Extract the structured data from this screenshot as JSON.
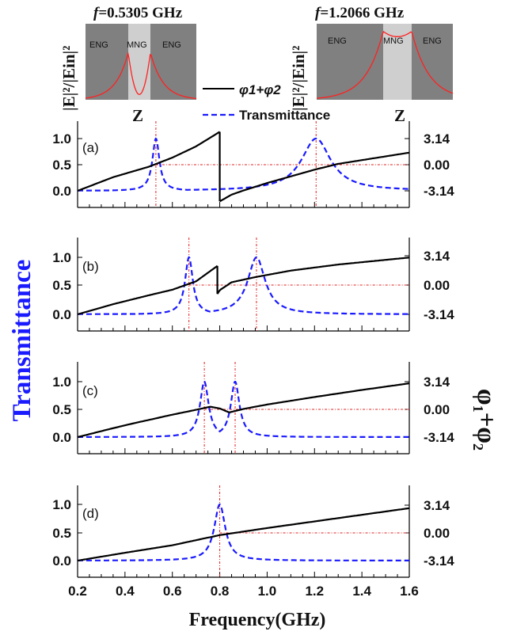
{
  "chart_data": {
    "type": "line",
    "xlabel": "Frequency(GHz)",
    "ylabel_left": "Transmittance",
    "ylabel_right": "φ1+φ2",
    "xlim": [
      0.2,
      1.6
    ],
    "x_ticks": [
      "0.2",
      "0.4",
      "0.6",
      "0.8",
      "1.0",
      "1.2",
      "1.4",
      "1.6"
    ],
    "y_left_ticks": [
      "0.0",
      "0.5",
      "1.0"
    ],
    "y_right_ticks": [
      "-3.14",
      "0.00",
      "3.14"
    ],
    "legend": [
      {
        "name": "φ1+φ2",
        "color": "#000000",
        "style": "solid"
      },
      {
        "name": "Transmittance",
        "color": "#1a1aff",
        "style": "dashed"
      }
    ],
    "panels": [
      {
        "label": "(a)",
        "transmittance_peaks": [
          {
            "f": 0.5305,
            "width": 0.018,
            "h": 1.0
          },
          {
            "f": 1.2066,
            "width": 0.075,
            "h": 1.0
          }
        ],
        "phase_segments": [
          {
            "x": [
              0.2,
              0.35,
              0.5,
              0.6,
              0.7,
              0.8
            ],
            "y": [
              -3.14,
              -1.5,
              -0.25,
              0.85,
              2.2,
              3.95
            ]
          },
          {
            "x": [
              0.8,
              0.85,
              0.9,
              1.0,
              1.1,
              1.2,
              1.3,
              1.4,
              1.5,
              1.6
            ],
            "y": [
              -4.4,
              -3.6,
              -3.1,
              -2.2,
              -1.4,
              -0.6,
              0.1,
              0.55,
              1.0,
              1.45
            ]
          }
        ],
        "markers": [
          0.5305,
          1.2066
        ]
      },
      {
        "label": "(b)",
        "transmittance_peaks": [
          {
            "f": 0.67,
            "width": 0.02,
            "h": 1.0
          },
          {
            "f": 0.955,
            "width": 0.045,
            "h": 1.0
          }
        ],
        "phase_segments": [
          {
            "x": [
              0.2,
              0.35,
              0.5,
              0.6,
              0.7,
              0.79
            ],
            "y": [
              -3.14,
              -2.05,
              -1.1,
              -0.5,
              0.4,
              2.05
            ]
          },
          {
            "x": [
              0.79,
              0.8,
              0.85,
              0.95,
              1.1,
              1.3,
              1.5,
              1.6
            ],
            "y": [
              -0.95,
              -0.55,
              0.3,
              0.85,
              1.55,
              2.2,
              2.7,
              2.95
            ]
          }
        ],
        "markers": [
          0.67,
          0.955
        ]
      },
      {
        "label": "(c)",
        "transmittance_peaks": [
          {
            "f": 0.735,
            "width": 0.022,
            "h": 1.0
          },
          {
            "f": 0.865,
            "width": 0.022,
            "h": 1.0
          }
        ],
        "phase_segments": [
          {
            "x": [
              0.2,
              0.4,
              0.6,
              0.7,
              0.76,
              0.8,
              0.84,
              0.9,
              1.0,
              1.2,
              1.4,
              1.6
            ],
            "y": [
              -3.14,
              -1.8,
              -0.6,
              -0.05,
              0.3,
              0.1,
              -0.35,
              0.05,
              0.55,
              1.4,
              2.2,
              2.95
            ]
          }
        ],
        "markers": [
          0.735,
          0.865
        ]
      },
      {
        "label": "(d)",
        "transmittance_peaks": [
          {
            "f": 0.8,
            "width": 0.028,
            "h": 1.0
          }
        ],
        "phase_segments": [
          {
            "x": [
              0.2,
              0.4,
              0.6,
              0.8,
              1.0,
              1.2,
              1.4,
              1.6
            ],
            "y": [
              -3.14,
              -2.25,
              -1.4,
              -0.25,
              0.55,
              1.3,
              2.05,
              2.8
            ]
          }
        ],
        "markers": [
          0.8
        ]
      }
    ]
  },
  "insets": [
    {
      "title_f": "f",
      "title_value": "=0.5305 GHz",
      "regions": [
        "ENG",
        "MNG",
        "ENG"
      ],
      "ylabel": "|E|²/|Ein|²",
      "xlabel": "Z",
      "curve": "dip"
    },
    {
      "title_f": "f",
      "title_value": "=1.2066 GHz",
      "regions": [
        "ENG",
        "MNG",
        "ENG"
      ],
      "ylabel": "|E|²/|Ein|²",
      "xlabel": "Z",
      "curve": "plateau"
    }
  ],
  "colors": {
    "phase": "#000000",
    "transmittance": "#1a1aff",
    "marker": "#e02020",
    "eng_fill": "#808080",
    "mng_fill": "#cfcfcf",
    "field_curve": "#ff2020"
  }
}
